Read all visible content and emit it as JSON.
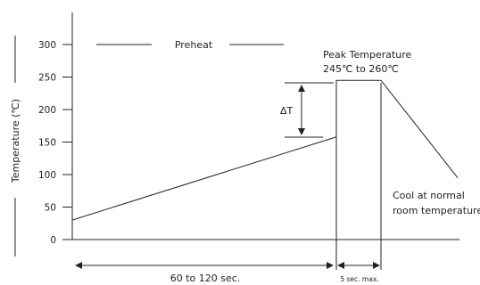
{
  "chart_data": {
    "type": "line",
    "ylabel": "Temperature (℃)",
    "xlabel": "",
    "ylim": [
      0,
      300
    ],
    "y_ticks": [
      0,
      50,
      100,
      150,
      200,
      250,
      300
    ],
    "grid": false,
    "series": [
      {
        "values_desc": "",
        "x": [
          0,
          120,
          120,
          125,
          140
        ],
        "y": [
          30,
          158,
          245,
          245,
          95
        ]
      }
    ],
    "annotations": {
      "preheat": "Preheat",
      "peak_line1": "Peak Temperature",
      "peak_line2": "245℃ to 260℃",
      "delta_t": "ΔT",
      "cool_line1": "Cool at normal",
      "cool_line2": "room temperature",
      "interval1": "60 to 120 sec.",
      "interval2": "5 sec. max."
    }
  }
}
